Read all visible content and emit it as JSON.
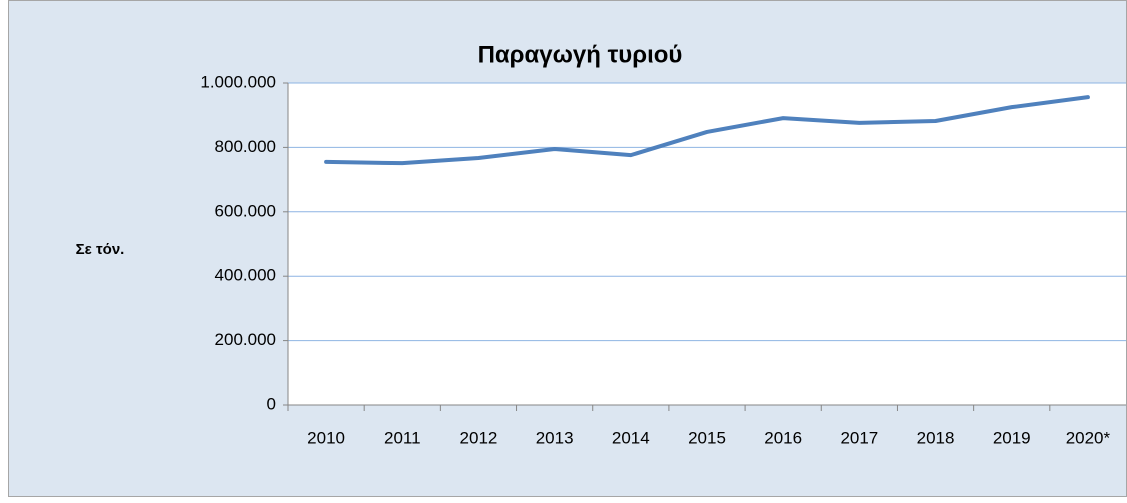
{
  "chart_data": {
    "type": "line",
    "title": "Παραγωγή τυριού",
    "y_label": "Σε τόν.",
    "categories": [
      "2010",
      "2011",
      "2012",
      "2013",
      "2014",
      "2015",
      "2016",
      "2017",
      "2018",
      "2019",
      "2020*"
    ],
    "series": [
      {
        "name": "Παραγωγή τυριού",
        "color": "#4f81bd",
        "values": [
          755000,
          751000,
          767000,
          795000,
          776000,
          848000,
          891000,
          876000,
          882000,
          925000,
          956000
        ]
      }
    ],
    "ylim": [
      0,
      1000000
    ],
    "yticks": [
      0,
      {
        "value": 200000,
        "label": "200.000"
      },
      {
        "value": 400000,
        "label": "400.000"
      },
      {
        "value": 600000,
        "label": "600.000"
      },
      {
        "value": 800000,
        "label": "800.000"
      },
      {
        "value": 1000000,
        "label": "1.000.000"
      }
    ],
    "grid": true
  }
}
